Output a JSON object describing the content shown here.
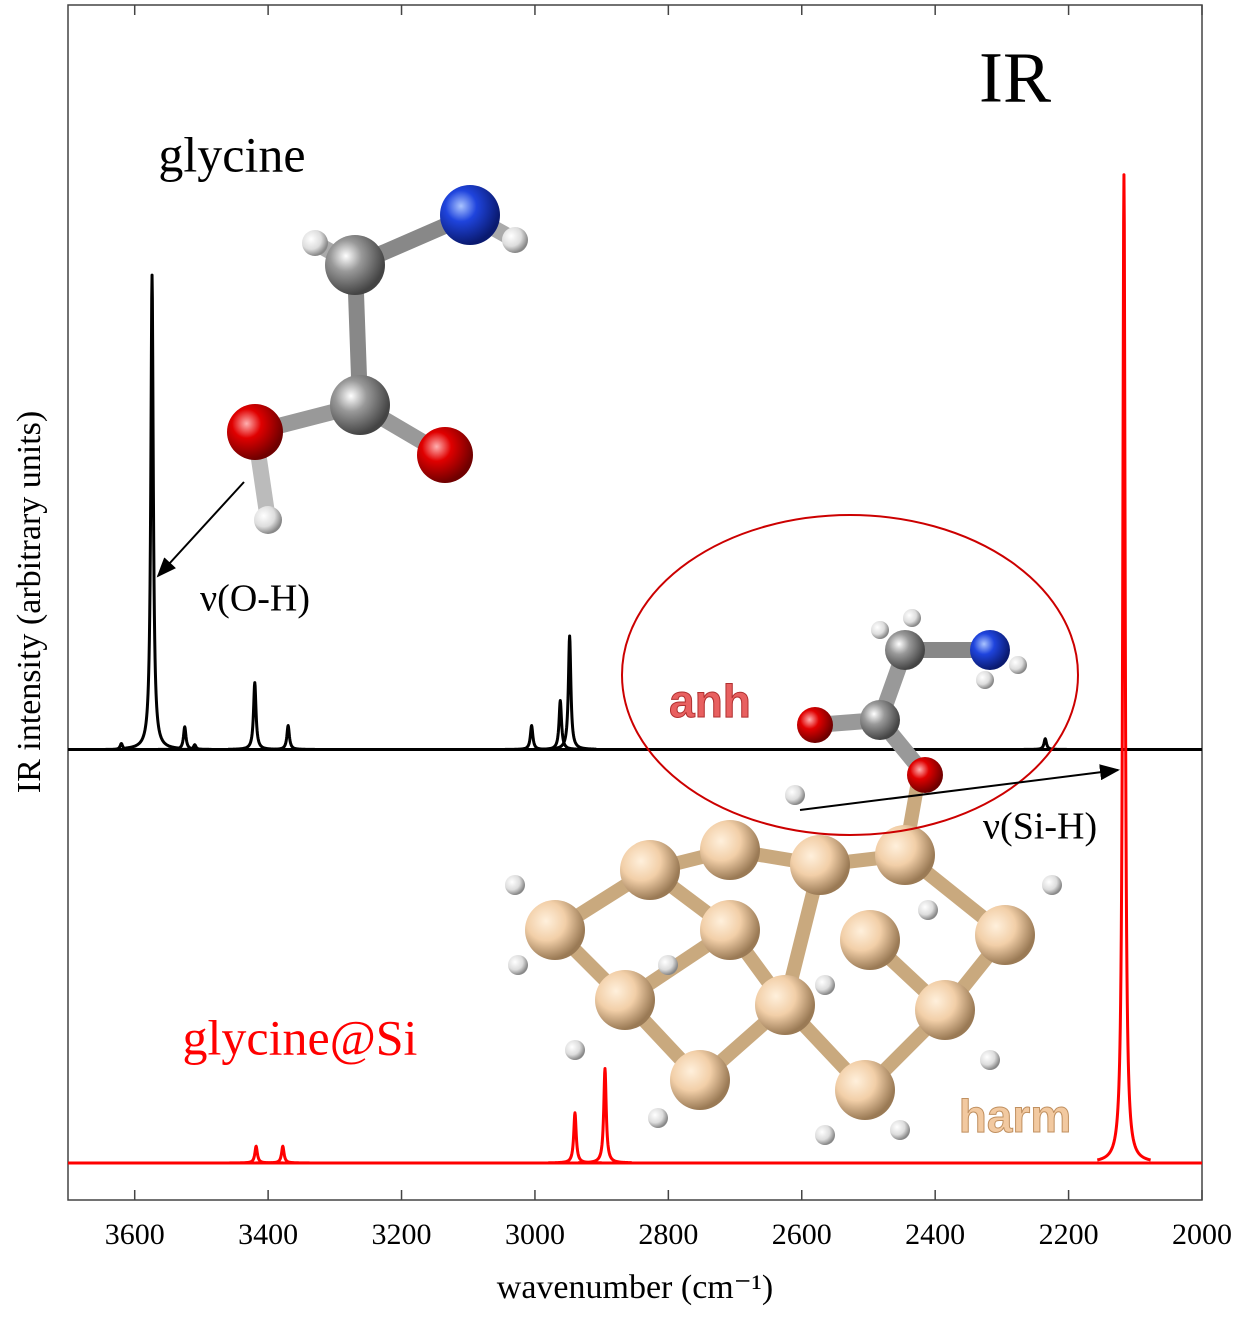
{
  "chart_data": {
    "type": "spectrum",
    "title": "IR",
    "xlabel": "wavenumber (cm⁻¹)",
    "ylabel": "IR intensity (arbitrary units)",
    "xlim": [
      3700,
      2000
    ],
    "xticks": [
      3600,
      3400,
      3200,
      3000,
      2800,
      2600,
      2400,
      2200,
      2000
    ],
    "ylim": [
      0,
      100
    ],
    "series": [
      {
        "name": "glycine",
        "color": "#000000",
        "baseline": 37.7,
        "x": [
          3620,
          3574,
          3525,
          3510,
          3420,
          3370,
          3005,
          2962,
          2948,
          2235
        ],
        "values": [
          38.2,
          77.4,
          39.6,
          38.1,
          43.3,
          39.7,
          39.7,
          41.8,
          47.2,
          38.6
        ]
      },
      {
        "name": "glycine@Si",
        "color": "#ff0000",
        "baseline": 3.1,
        "x": [
          3418,
          3378,
          2940,
          2895,
          2117
        ],
        "values": [
          4.5,
          4.5,
          7.3,
          11.0,
          85.8
        ]
      }
    ],
    "annotations": [
      "ν(O-H)",
      "ν(Si-H)",
      "anh",
      "harm"
    ]
  }
}
